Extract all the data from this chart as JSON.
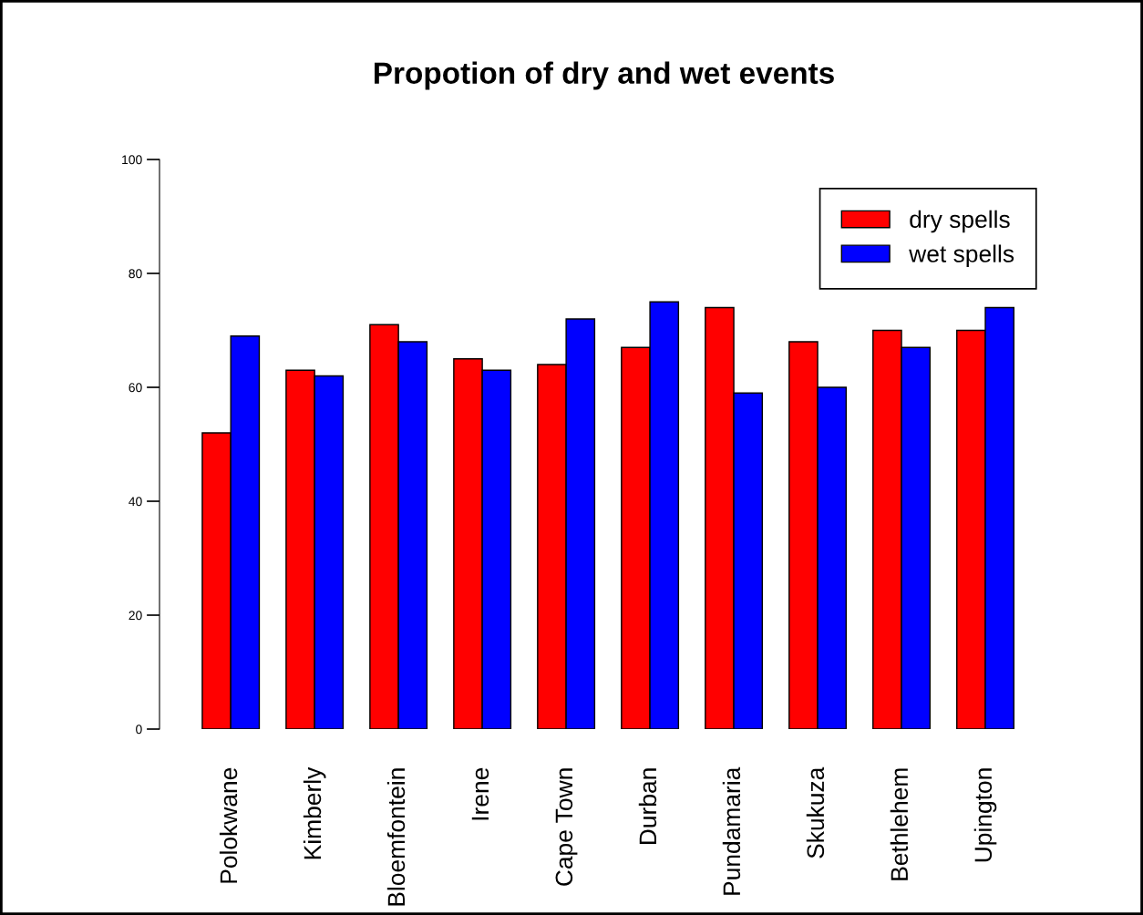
{
  "chart_data": {
    "type": "bar",
    "title": "Propotion of dry and wet events",
    "categories": [
      "Polokwane",
      "Kimberly",
      "Bloemfontein",
      "Irene",
      "Cape Town",
      "Durban",
      "Pundamaria",
      "Skukuza",
      "Bethlehem",
      "Upington"
    ],
    "series": [
      {
        "name": "dry spells",
        "color": "#ff0000",
        "values": [
          52,
          63,
          71,
          65,
          64,
          67,
          74,
          68,
          70,
          70
        ]
      },
      {
        "name": "wet spells",
        "color": "#0000ff",
        "values": [
          69,
          62,
          68,
          63,
          72,
          75,
          59,
          60,
          67,
          74
        ]
      }
    ],
    "ylim": [
      0,
      100
    ],
    "yticks": [
      0,
      20,
      40,
      60,
      80,
      100
    ],
    "grid": false,
    "legend": "top right"
  }
}
